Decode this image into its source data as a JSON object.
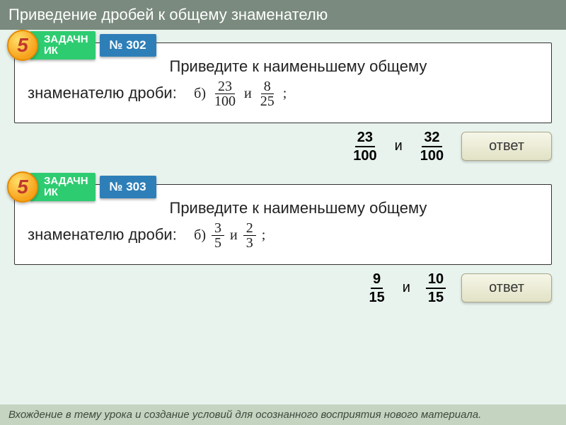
{
  "colors": {
    "page_bg": "#e8f3ed",
    "header_bg": "#7a8a7e",
    "footer_bg": "#c5d4c0",
    "tab_green": "#2ecc71",
    "tab_blue": "#2e7fb8",
    "badge_gradient": [
      "#ffdf6b",
      "#f7a11a"
    ],
    "badge_text": "#c0392b",
    "btn_gradient": [
      "#f6f6e8",
      "#e2e2c6"
    ]
  },
  "header": {
    "title": "Приведение дробей к общему знаменателю"
  },
  "footer": {
    "text": "Вхождение в тему урока и создание условий для осознанного восприятия нового материала."
  },
  "tasks": [
    {
      "badge": "5",
      "tab_label": "ЗАДАЧН\nИК",
      "number_label": "№ 302",
      "prompt_before": "Приведите к наименьшему общему",
      "prompt_line2_before": "знаменателю дроби:",
      "part_label": "б)",
      "frac1": {
        "num": "23",
        "den": "100"
      },
      "conj": "и",
      "frac2": {
        "num": "8",
        "den": "25"
      },
      "tail": ";",
      "answer": {
        "frac1": {
          "num": "23",
          "den": "100"
        },
        "conj": "и",
        "frac2": {
          "num": "32",
          "den": "100"
        },
        "button": "ответ"
      }
    },
    {
      "badge": "5",
      "tab_label": "ЗАДАЧН\nИК",
      "number_label": "№ 303",
      "prompt_before": "Приведите к наименьшему общему",
      "prompt_line2_before": "знаменателю дроби:",
      "part_label": "б)",
      "frac1": {
        "num": "3",
        "den": "5"
      },
      "conj": "и",
      "frac2": {
        "num": "2",
        "den": "3"
      },
      "tail": ";",
      "answer": {
        "frac1": {
          "num": "9",
          "den": "15"
        },
        "conj": "и",
        "frac2": {
          "num": "10",
          "den": "15"
        },
        "button": "ответ"
      }
    }
  ]
}
